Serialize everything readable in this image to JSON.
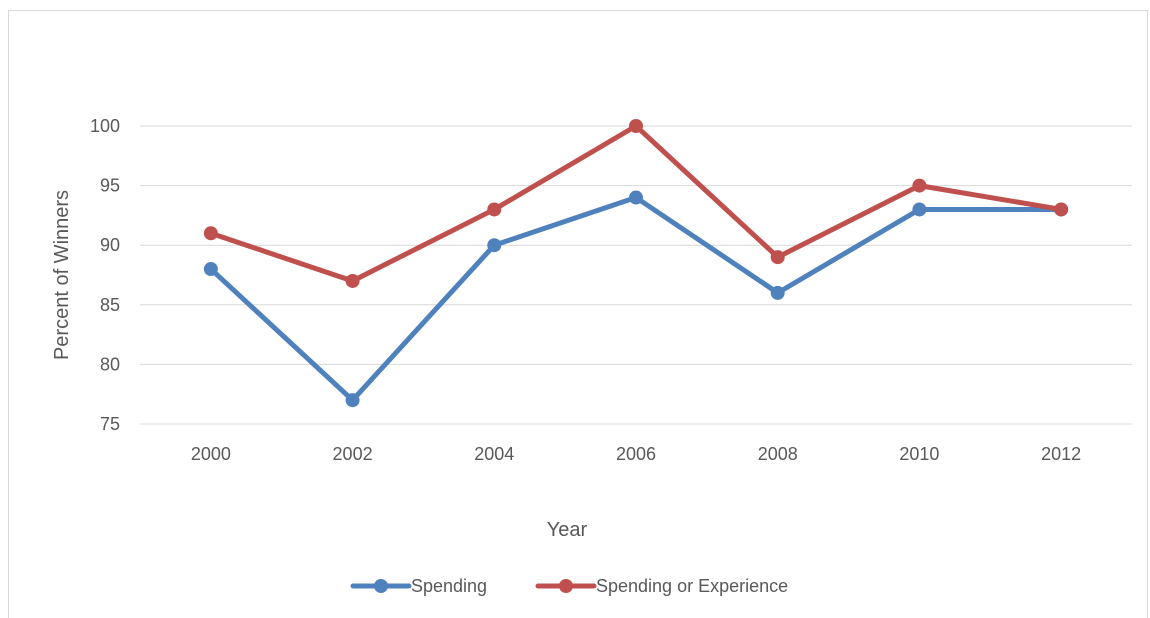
{
  "chart_data": {
    "type": "line",
    "title": "",
    "xlabel": "Year",
    "ylabel": "Percent of Winners",
    "categories": [
      "2000",
      "2002",
      "2004",
      "2006",
      "2008",
      "2010",
      "2012"
    ],
    "ylim": [
      75,
      100
    ],
    "yticks": [
      75,
      80,
      85,
      90,
      95,
      100
    ],
    "grid": true,
    "legend": "bottom",
    "series": [
      {
        "name": "Spending",
        "color": "#4f81bd",
        "values": [
          88,
          77,
          90,
          94,
          86,
          93,
          93
        ]
      },
      {
        "name": "Spending or Experience",
        "color": "#c0504d",
        "values": [
          91,
          87,
          93,
          100,
          89,
          95,
          93
        ]
      }
    ]
  }
}
